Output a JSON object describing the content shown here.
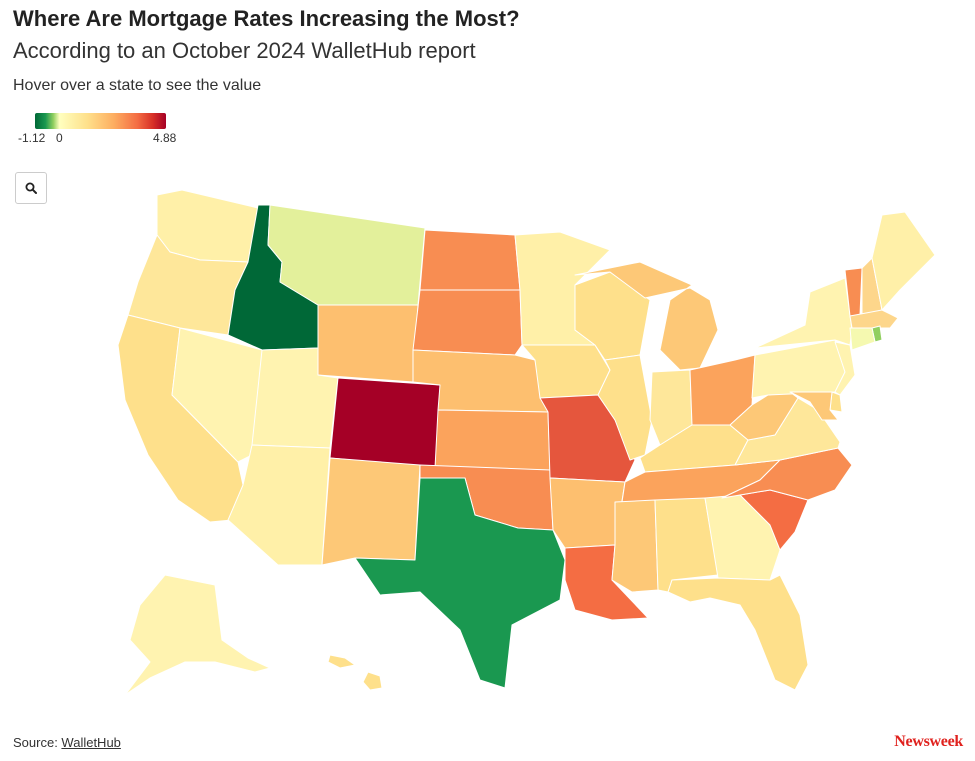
{
  "header": {
    "title": "Where Are Mortgage Rates Increasing the Most?",
    "subtitle": "According to an October 2024 WalletHub report",
    "instruction": "Hover over a state to see the value"
  },
  "legend": {
    "min_label": "-1.12",
    "zero_label": "0",
    "max_label": "4.88",
    "min": -1.12,
    "max": 4.88,
    "colors": [
      "#006837",
      "#1a9850",
      "#91cf60",
      "#ffffbf",
      "#fee08b",
      "#fdae61",
      "#f46d43",
      "#d73027",
      "#a50026"
    ]
  },
  "zoom": {
    "icon": "search-icon"
  },
  "map": {
    "states": [
      {
        "code": "WA",
        "fill": "#fff0a8"
      },
      {
        "code": "OR",
        "fill": "#fee79a"
      },
      {
        "code": "CA",
        "fill": "#fee08b"
      },
      {
        "code": "ID",
        "fill": "#006837"
      },
      {
        "code": "NV",
        "fill": "#fff3b0"
      },
      {
        "code": "MT",
        "fill": "#e3f09b"
      },
      {
        "code": "WY",
        "fill": "#fdbf6f"
      },
      {
        "code": "UT",
        "fill": "#fff3b0"
      },
      {
        "code": "AZ",
        "fill": "#fff0a8"
      },
      {
        "code": "CO",
        "fill": "#a50026"
      },
      {
        "code": "NM",
        "fill": "#fdc877"
      },
      {
        "code": "ND",
        "fill": "#f88d52"
      },
      {
        "code": "SD",
        "fill": "#f88d52"
      },
      {
        "code": "NE",
        "fill": "#fdbf6f"
      },
      {
        "code": "KS",
        "fill": "#fba35c"
      },
      {
        "code": "OK",
        "fill": "#f88d52"
      },
      {
        "code": "TX",
        "fill": "#1a9850"
      },
      {
        "code": "MN",
        "fill": "#fff0a8"
      },
      {
        "code": "IA",
        "fill": "#fee08b"
      },
      {
        "code": "MO",
        "fill": "#e5563d"
      },
      {
        "code": "AR",
        "fill": "#fdbf6f"
      },
      {
        "code": "LA",
        "fill": "#f46d43"
      },
      {
        "code": "WI",
        "fill": "#fee08b"
      },
      {
        "code": "IL",
        "fill": "#fee08b"
      },
      {
        "code": "MI",
        "fill": "#fdc877"
      },
      {
        "code": "IN",
        "fill": "#fee79a"
      },
      {
        "code": "OH",
        "fill": "#fba35c"
      },
      {
        "code": "KY",
        "fill": "#fee08b"
      },
      {
        "code": "TN",
        "fill": "#fba35c"
      },
      {
        "code": "MS",
        "fill": "#fdc877"
      },
      {
        "code": "AL",
        "fill": "#fee08b"
      },
      {
        "code": "GA",
        "fill": "#fff3b0"
      },
      {
        "code": "FL",
        "fill": "#fee08b"
      },
      {
        "code": "SC",
        "fill": "#f46d43"
      },
      {
        "code": "NC",
        "fill": "#f88d52"
      },
      {
        "code": "VA",
        "fill": "#fee79a"
      },
      {
        "code": "WV",
        "fill": "#fdc877"
      },
      {
        "code": "PA",
        "fill": "#fff3b0"
      },
      {
        "code": "NY",
        "fill": "#fff3b0"
      },
      {
        "code": "VT",
        "fill": "#f88d52"
      },
      {
        "code": "NH",
        "fill": "#fdd68b"
      },
      {
        "code": "ME",
        "fill": "#fff0a8"
      },
      {
        "code": "MA",
        "fill": "#fdd68b"
      },
      {
        "code": "RI",
        "fill": "#91cf60"
      },
      {
        "code": "CT",
        "fill": "#f5f9b0"
      },
      {
        "code": "NJ",
        "fill": "#fff3b0"
      },
      {
        "code": "DE",
        "fill": "#fee08b"
      },
      {
        "code": "MD",
        "fill": "#fdc877"
      },
      {
        "code": "AK",
        "fill": "#fff3b0"
      },
      {
        "code": "HI",
        "fill": "#fee08b"
      }
    ]
  },
  "footer": {
    "source_prefix": "Source: ",
    "source_link": "WalletHub",
    "brand": "Newsweek"
  }
}
